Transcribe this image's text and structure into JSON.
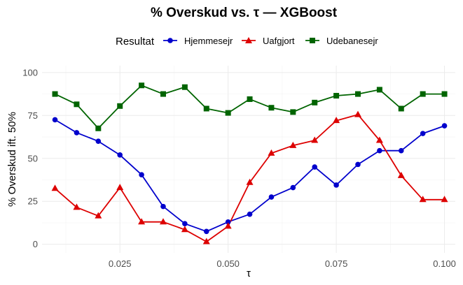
{
  "chart_data": {
    "type": "line",
    "title": "% Overskud vs. τ — XGBoost",
    "xlabel": "τ",
    "ylabel": "% Overskud ift. 50%",
    "xlim": [
      0.007,
      0.1025
    ],
    "ylim": [
      -5,
      104
    ],
    "x_ticks": [
      0.025,
      0.05,
      0.075,
      0.1
    ],
    "x_tick_labels": [
      "0.025",
      "0.050",
      "0.075",
      "0.100"
    ],
    "y_ticks": [
      0,
      25,
      50,
      75,
      100
    ],
    "y_tick_labels": [
      "0",
      "25",
      "50",
      "75",
      "100"
    ],
    "grid": true,
    "legend_title": "Resultat",
    "legend_position": "top",
    "x": [
      0.01,
      0.015,
      0.02,
      0.025,
      0.03,
      0.035,
      0.04,
      0.045,
      0.05,
      0.055,
      0.06,
      0.065,
      0.07,
      0.075,
      0.08,
      0.085,
      0.09,
      0.095,
      0.1
    ],
    "series": [
      {
        "name": "Hjemmesejr",
        "color": "#0000cc",
        "marker": "circle",
        "values": [
          72.5,
          65,
          60,
          52,
          40.5,
          22,
          12,
          7.5,
          13,
          17.5,
          27.5,
          33,
          45,
          34.5,
          46.5,
          54.5,
          54.5,
          64.5,
          69
        ]
      },
      {
        "name": "Uafgjort",
        "color": "#dd0000",
        "marker": "triangle",
        "values": [
          32.5,
          21.5,
          16.5,
          33,
          13,
          13,
          8.5,
          1.5,
          10.5,
          36,
          53,
          57.5,
          60.5,
          72,
          75.5,
          60.5,
          40,
          26,
          26
        ]
      },
      {
        "name": "Udebanesejr",
        "color": "#006400",
        "marker": "square",
        "values": [
          87.5,
          81.5,
          67.5,
          80.5,
          92.5,
          87.5,
          91.5,
          79,
          76.5,
          84.5,
          79.5,
          77,
          82.5,
          86.5,
          87.5,
          90,
          79,
          87.5,
          87.5
        ]
      }
    ]
  }
}
